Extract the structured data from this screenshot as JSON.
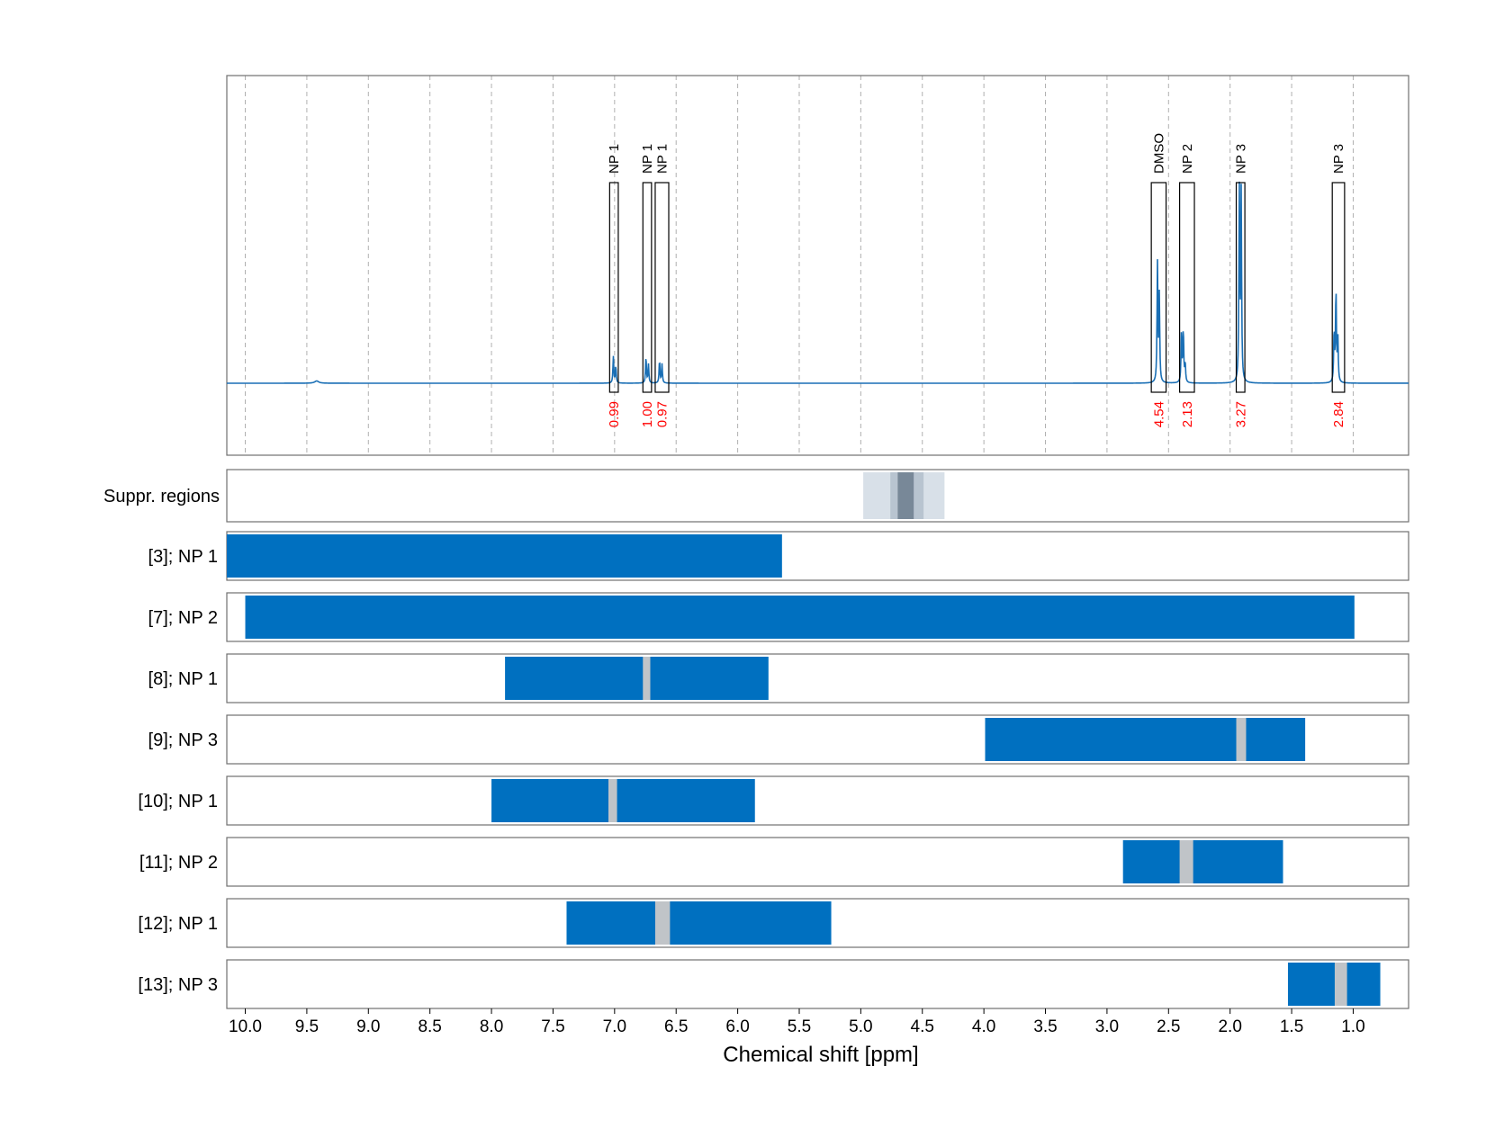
{
  "chart_data": {
    "type": "nmr-spectrum",
    "xlabel": "Chemical shift [ppm]",
    "xlim": [
      10.15,
      0.55
    ],
    "xticks": [
      10.0,
      9.5,
      9.0,
      8.5,
      8.0,
      7.5,
      7.0,
      6.5,
      6.0,
      5.5,
      5.0,
      4.5,
      4.0,
      3.5,
      3.0,
      2.5,
      2.0,
      1.5,
      1.0
    ],
    "xtick_labels": [
      "10.0",
      "9.5",
      "9.0",
      "8.5",
      "8.0",
      "7.5",
      "7.0",
      "6.5",
      "6.0",
      "5.5",
      "5.0",
      "4.5",
      "4.0",
      "3.5",
      "3.0",
      "2.5",
      "2.0",
      "1.5",
      "1.0"
    ],
    "colors": {
      "spectrum": "#1a6fb5",
      "bar": "#0070c0",
      "gap": "#c0c4c8",
      "suppr_light": "#d8e0e8",
      "suppr_mid": "#b8c4d0",
      "suppr_dark": "#788898",
      "integral": "#ff0000",
      "grid": "#b0b0b0"
    },
    "spectrum": {
      "baseline_ppm": [
        10.15,
        0.55
      ],
      "peaks": [
        {
          "ppm": 9.42,
          "height": 0.012,
          "width": 0.02
        },
        {
          "ppm": 7.01,
          "height": 0.14,
          "width": 0.004
        },
        {
          "ppm": 6.99,
          "height": 0.09,
          "width": 0.004
        },
        {
          "ppm": 6.745,
          "height": 0.14,
          "width": 0.004
        },
        {
          "ppm": 6.725,
          "height": 0.1,
          "width": 0.004
        },
        {
          "ppm": 6.635,
          "height": 0.12,
          "width": 0.004
        },
        {
          "ppm": 6.615,
          "height": 0.1,
          "width": 0.004
        },
        {
          "ppm": 2.59,
          "height": 0.62,
          "width": 0.004
        },
        {
          "ppm": 2.575,
          "height": 0.45,
          "width": 0.004
        },
        {
          "ppm": 2.395,
          "height": 0.27,
          "width": 0.004
        },
        {
          "ppm": 2.38,
          "height": 0.28,
          "width": 0.004
        },
        {
          "ppm": 2.365,
          "height": 0.1,
          "width": 0.004
        },
        {
          "ppm": 1.925,
          "height": 1.0,
          "width": 0.004
        },
        {
          "ppm": 1.91,
          "height": 0.98,
          "width": 0.004
        },
        {
          "ppm": 1.14,
          "height": 0.49,
          "width": 0.004
        },
        {
          "ppm": 1.155,
          "height": 0.27,
          "width": 0.004
        },
        {
          "ppm": 1.125,
          "height": 0.24,
          "width": 0.004
        }
      ]
    },
    "peak_boxes": [
      {
        "label": "NP 1",
        "from": 7.04,
        "to": 6.97,
        "integral": "0.99"
      },
      {
        "label": "NP 1",
        "from": 6.77,
        "to": 6.7,
        "integral": "1.00"
      },
      {
        "label": "NP 1",
        "from": 6.67,
        "to": 6.56,
        "integral": "0.97"
      },
      {
        "label": "DMSO",
        "from": 2.64,
        "to": 2.52,
        "integral": "4.54"
      },
      {
        "label": "NP 2",
        "from": 2.41,
        "to": 2.29,
        "integral": "2.13"
      },
      {
        "label": "NP 3",
        "from": 1.95,
        "to": 1.88,
        "integral": "3.27"
      },
      {
        "label": "NP 3",
        "from": 1.17,
        "to": 1.07,
        "integral": "2.84"
      }
    ],
    "suppression": {
      "label": "Suppr. regions",
      "regions": [
        {
          "from": 4.98,
          "to": 4.32,
          "level": "light"
        },
        {
          "from": 4.76,
          "to": 4.49,
          "level": "mid"
        },
        {
          "from": 4.7,
          "to": 4.57,
          "level": "dark"
        }
      ]
    },
    "rows": [
      {
        "label": "[3]; NP 1",
        "from": 10.15,
        "to": 5.64,
        "gap": null
      },
      {
        "label": "[7]; NP 2",
        "from": 10.0,
        "to": 0.99,
        "gap": null
      },
      {
        "label": "[8]; NP 1",
        "from": 7.89,
        "to": 5.75,
        "gap": [
          6.77,
          6.71
        ]
      },
      {
        "label": "[9]; NP 3",
        "from": 3.99,
        "to": 1.39,
        "gap": [
          1.95,
          1.87
        ]
      },
      {
        "label": "[10]; NP 1",
        "from": 8.0,
        "to": 5.86,
        "gap": [
          7.05,
          6.98
        ]
      },
      {
        "label": "[11]; NP 2",
        "from": 2.87,
        "to": 1.57,
        "gap": [
          2.41,
          2.3
        ]
      },
      {
        "label": "[12]; NP 1",
        "from": 7.39,
        "to": 5.24,
        "gap": [
          6.67,
          6.55
        ]
      },
      {
        "label": "[13]; NP 3",
        "from": 1.53,
        "to": 0.78,
        "gap": [
          1.15,
          1.05
        ]
      }
    ]
  }
}
